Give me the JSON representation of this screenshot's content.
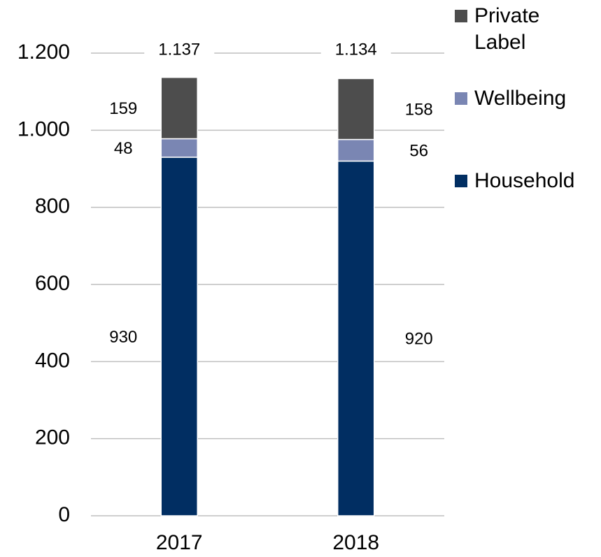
{
  "chart_data": {
    "type": "stacked_bar",
    "categories": [
      "2017",
      "2018"
    ],
    "series": [
      {
        "name": "Household",
        "color": "#012e62",
        "values": [
          930,
          920
        ]
      },
      {
        "name": "Wellbeing",
        "color": "#7a86b3",
        "values": [
          48,
          56
        ]
      },
      {
        "name": "Private Label",
        "color": "#4d4d4d",
        "values": [
          159,
          158
        ]
      }
    ],
    "totals": {
      "values": [
        1137,
        1134
      ],
      "value_labels": [
        "1.137",
        "1.134"
      ]
    },
    "ylim": [
      0,
      1200
    ],
    "yticks": [
      0,
      200,
      400,
      600,
      800,
      {
        "value": 1000,
        "label": "1.000"
      },
      {
        "value": 1200,
        "label": "1.200"
      }
    ],
    "grid": true
  }
}
